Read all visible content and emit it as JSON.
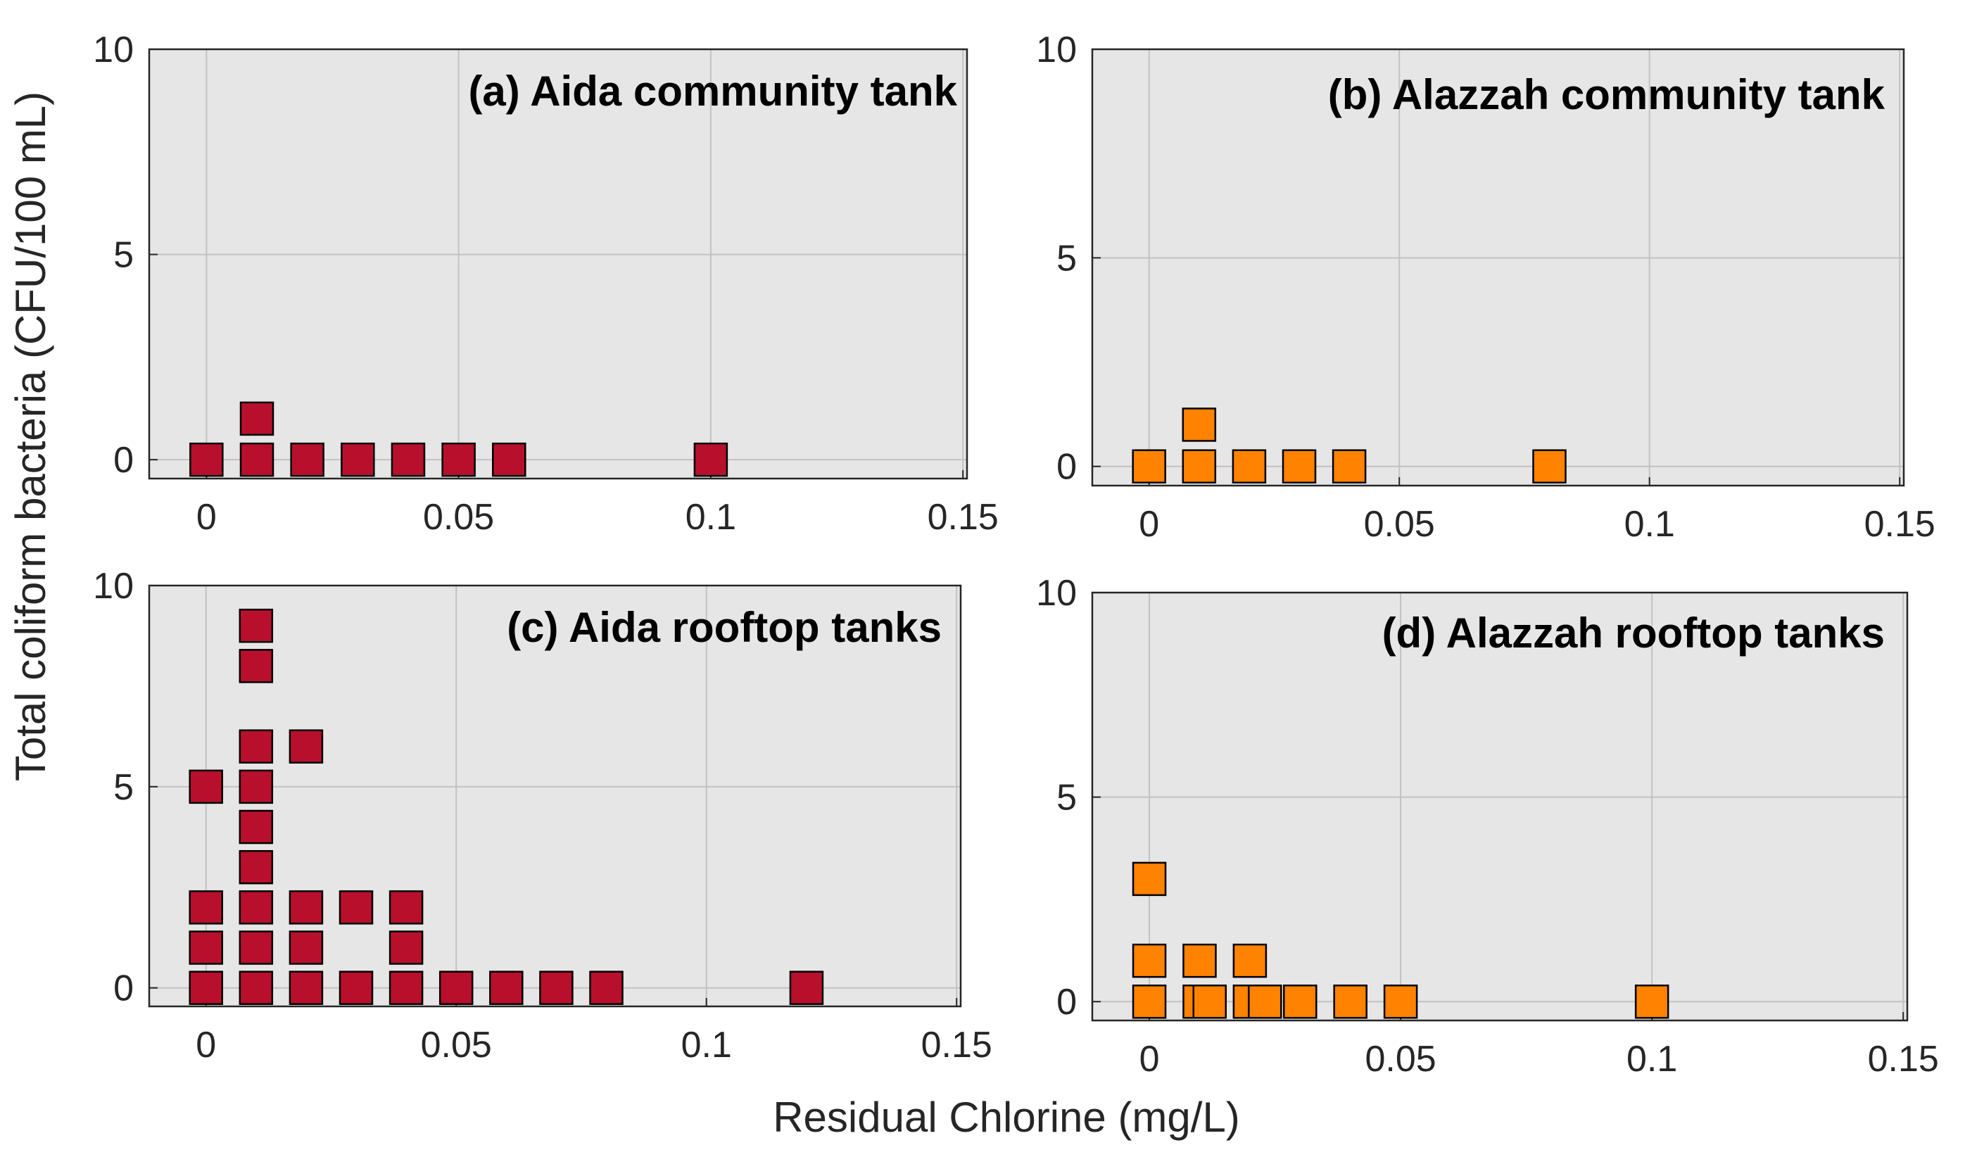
{
  "figure": {
    "ylabel": "Total coliform bacteria (CFU/100 mL)",
    "xlabel": "Residual Chlorine (mg/L)"
  },
  "colors": {
    "aida": "#b8102c",
    "alazzah": "#ff8200",
    "plot_bg": "#e6e6e6",
    "grid": "#c2c2c2",
    "axis": "#262626"
  },
  "chart_data": [
    {
      "type": "scatter",
      "title": "(a) Aida community tank",
      "color_key": "aida",
      "xlim": [
        0,
        0.15
      ],
      "ylim": [
        0,
        10
      ],
      "xticks": [
        0,
        0.05,
        0.1,
        0.15
      ],
      "xtick_labels": [
        "0",
        "0.05",
        "0.1",
        "0.15"
      ],
      "yticks": [
        0,
        5,
        10
      ],
      "ytick_labels": [
        "0",
        "5",
        "10"
      ],
      "grid": true,
      "points": [
        [
          0,
          0
        ],
        [
          0.01,
          0
        ],
        [
          0.01,
          1
        ],
        [
          0.02,
          0
        ],
        [
          0.03,
          0
        ],
        [
          0.04,
          0
        ],
        [
          0.05,
          0
        ],
        [
          0.06,
          0
        ],
        [
          0.1,
          0
        ]
      ]
    },
    {
      "type": "scatter",
      "title": "(b) Alazzah community tank",
      "color_key": "alazzah",
      "xlim": [
        0,
        0.15
      ],
      "ylim": [
        0,
        10
      ],
      "xticks": [
        0,
        0.05,
        0.1,
        0.15
      ],
      "xtick_labels": [
        "0",
        "0.05",
        "0.1",
        "0.15"
      ],
      "yticks": [
        0,
        5,
        10
      ],
      "ytick_labels": [
        "0",
        "5",
        "10"
      ],
      "grid": true,
      "points": [
        [
          0,
          0
        ],
        [
          0.01,
          0
        ],
        [
          0.01,
          1
        ],
        [
          0.02,
          0
        ],
        [
          0.03,
          0
        ],
        [
          0.04,
          0
        ],
        [
          0.08,
          0
        ]
      ]
    },
    {
      "type": "scatter",
      "title": "(c) Aida rooftop tanks",
      "color_key": "aida",
      "xlim": [
        0,
        0.15
      ],
      "ylim": [
        0,
        10
      ],
      "xticks": [
        0,
        0.05,
        0.1,
        0.15
      ],
      "xtick_labels": [
        "0",
        "0.05",
        "0.1",
        "0.15"
      ],
      "yticks": [
        0,
        5,
        10
      ],
      "ytick_labels": [
        "0",
        "5",
        "10"
      ],
      "grid": true,
      "points": [
        [
          0,
          0
        ],
        [
          0,
          1
        ],
        [
          0,
          2
        ],
        [
          0,
          5
        ],
        [
          0.01,
          0
        ],
        [
          0.01,
          1
        ],
        [
          0.01,
          2
        ],
        [
          0.01,
          3
        ],
        [
          0.01,
          4
        ],
        [
          0.01,
          5
        ],
        [
          0.01,
          6
        ],
        [
          0.01,
          8
        ],
        [
          0.01,
          9
        ],
        [
          0.02,
          0
        ],
        [
          0.02,
          1
        ],
        [
          0.02,
          2
        ],
        [
          0.02,
          6
        ],
        [
          0.03,
          0
        ],
        [
          0.03,
          2
        ],
        [
          0.04,
          0
        ],
        [
          0.04,
          1
        ],
        [
          0.04,
          2
        ],
        [
          0.05,
          0
        ],
        [
          0.06,
          0
        ],
        [
          0.07,
          0
        ],
        [
          0.08,
          0
        ],
        [
          0.12,
          0
        ]
      ]
    },
    {
      "type": "scatter",
      "title": "(d) Alazzah rooftop tanks",
      "color_key": "alazzah",
      "xlim": [
        0,
        0.15
      ],
      "ylim": [
        0,
        10
      ],
      "xticks": [
        0,
        0.05,
        0.1,
        0.15
      ],
      "xtick_labels": [
        "0",
        "0.05",
        "0.1",
        "0.15"
      ],
      "yticks": [
        0,
        5,
        10
      ],
      "ytick_labels": [
        "0",
        "5",
        "10"
      ],
      "grid": true,
      "points": [
        [
          0,
          0
        ],
        [
          0,
          1
        ],
        [
          0,
          3
        ],
        [
          0.01,
          0
        ],
        [
          0.012,
          0
        ],
        [
          0.01,
          1
        ],
        [
          0.02,
          0
        ],
        [
          0.023,
          0
        ],
        [
          0.02,
          1
        ],
        [
          0.03,
          0
        ],
        [
          0.04,
          0
        ],
        [
          0.05,
          0
        ],
        [
          0.1,
          0
        ]
      ]
    }
  ]
}
